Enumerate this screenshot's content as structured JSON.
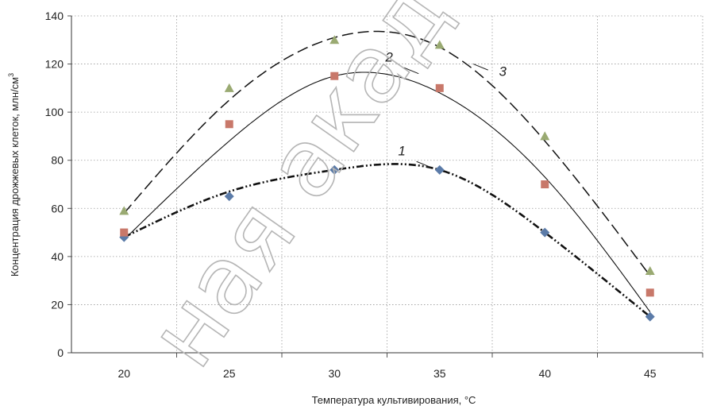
{
  "chart_data": {
    "type": "scatter",
    "xlabel": "Температура культивирования, °С",
    "ylabel": "Концентрация дрожжевых клеток, млн/см",
    "ylabel_sup": "3",
    "xlim": [
      17.5,
      47.5
    ],
    "ylim": [
      0,
      140
    ],
    "x_ticks": [
      "20",
      "25",
      "30",
      "35",
      "40",
      "45"
    ],
    "y_ticks": [
      "0",
      "20",
      "40",
      "60",
      "80",
      "100",
      "120",
      "140"
    ],
    "grid": true,
    "x": [
      20,
      25,
      30,
      35,
      40,
      45
    ],
    "series": [
      {
        "label": "1",
        "marker": "diamond",
        "color": "#5b7ba8",
        "line_style": "dash-dot-dot",
        "values": [
          48,
          65,
          76,
          76,
          50,
          15
        ],
        "trend": [
          48,
          67,
          76,
          76,
          50,
          15
        ]
      },
      {
        "label": "2",
        "marker": "square",
        "color": "#c8786a",
        "line_style": "solid",
        "values": [
          50,
          95,
          115,
          110,
          70,
          25
        ],
        "trend": [
          47,
          88,
          115,
          108,
          73,
          17
        ]
      },
      {
        "label": "3",
        "marker": "triangle",
        "color": "#9aaa72",
        "line_style": "dashed",
        "values": [
          59,
          110,
          130,
          128,
          90,
          34
        ],
        "trend": [
          58,
          105,
          131,
          127,
          88,
          32
        ]
      }
    ]
  },
  "watermark_text": "ная академия"
}
